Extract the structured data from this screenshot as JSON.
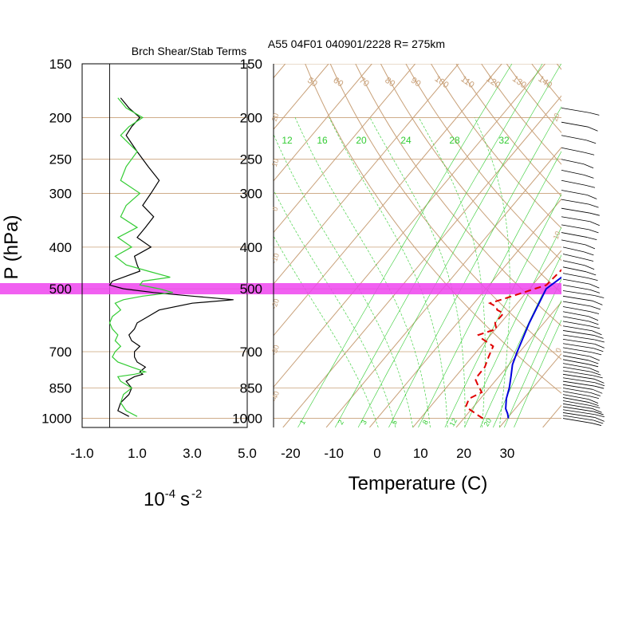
{
  "titles": {
    "left": "Brch Shear/Stab Terms",
    "right": "A55 04F01 040901/2228 R= 275km"
  },
  "axes": {
    "p_label": "P (hPa)",
    "left_xlabel_base": "10",
    "left_xlabel_exp": "-4",
    "left_xlabel_unit": "s",
    "left_xlabel_unit_exp": "-2",
    "right_xlabel": "Temperature (C)"
  },
  "colors": {
    "grid": "#c8a078",
    "temperature": "#0000dd",
    "dewpoint": "#e00000",
    "mixing_ratio": "#33cc33",
    "highlight": "#ee44ee",
    "shear_term": "#000000",
    "stability_term": "#33cc33"
  },
  "chart_data": [
    {
      "type": "line",
      "title": "Brch Shear/Stab Terms",
      "xlabel": "10-4 s -2",
      "ylabel": "P (hPa)",
      "xlim": [
        -1.0,
        5.0
      ],
      "ylim": [
        1050,
        150
      ],
      "y_scale": "log",
      "x_ticks": [
        "-1.0",
        "1.0",
        "3.0",
        "5.0"
      ],
      "y_ticks": [
        "150",
        "200",
        "250",
        "300",
        "400",
        "500",
        "700",
        "850",
        "1000"
      ],
      "highlight_band_hPa": [
        485,
        515
      ],
      "series": [
        {
          "color": "black",
          "x": [
            0.7,
            0.3,
            0.4,
            0.7,
            0.8,
            0.6,
            0.9,
            1.2,
            1.1,
            1.3,
            1.0,
            0.9,
            0.9,
            1.1,
            0.8,
            0.7,
            0.9,
            1.0,
            1.4,
            1.8,
            3.0,
            4.5,
            3.0,
            1.6,
            0.5,
            0.0,
            0.1,
            0.5,
            1.1,
            1.0,
            0.9,
            1.5,
            1.0,
            1.3,
            1.6,
            1.2,
            1.5,
            1.8,
            1.4,
            1.0,
            0.6,
            0.8,
            1.1,
            0.7,
            0.4
          ],
          "y": [
            990,
            960,
            920,
            880,
            850,
            820,
            800,
            790,
            780,
            760,
            740,
            720,
            700,
            680,
            660,
            640,
            620,
            600,
            580,
            560,
            540,
            530,
            520,
            510,
            500,
            490,
            480,
            470,
            455,
            440,
            420,
            400,
            380,
            360,
            340,
            320,
            300,
            280,
            260,
            240,
            220,
            210,
            200,
            190,
            180
          ]
        },
        {
          "color": "green",
          "x": [
            1.0,
            0.6,
            0.4,
            0.5,
            0.8,
            0.4,
            0.3,
            0.9,
            1.3,
            0.8,
            0.3,
            0.1,
            0.2,
            0.4,
            0.2,
            0.3,
            0.1,
            0.0,
            0.1,
            0.4,
            0.2,
            0.5,
            1.2,
            2.3,
            1.8,
            1.1,
            1.2,
            2.2,
            1.4,
            0.6,
            0.2,
            0.8,
            0.3,
            1.0,
            0.4,
            0.6,
            1.1,
            0.4,
            0.6,
            1.0,
            0.4,
            0.7,
            1.2,
            0.6,
            0.3
          ],
          "y": [
            990,
            960,
            920,
            880,
            850,
            820,
            800,
            790,
            780,
            760,
            740,
            720,
            700,
            680,
            660,
            640,
            620,
            600,
            580,
            560,
            540,
            530,
            520,
            510,
            500,
            490,
            480,
            470,
            455,
            440,
            420,
            400,
            380,
            360,
            340,
            320,
            300,
            280,
            260,
            240,
            220,
            210,
            200,
            190,
            180
          ]
        }
      ]
    },
    {
      "type": "line",
      "title": "A55 04F01 040901/2228 R= 275km",
      "xlabel": "Temperature (C)",
      "ylabel": "P (hPa)",
      "xlim": [
        -22.5,
        41.5
      ],
      "ylim": [
        1050,
        150
      ],
      "y_scale": "log",
      "x_ticks": [
        "-20",
        "-10",
        "0",
        "10",
        "20",
        "30"
      ],
      "y_ticks": [
        "150",
        "200",
        "250",
        "300",
        "400",
        "500",
        "700",
        "850",
        "1000"
      ],
      "skew": "skew-T",
      "series": [
        {
          "color": "blue",
          "style": "solid",
          "x": [
            30.3,
            29.2,
            27.8,
            26.0,
            24.6,
            22.8,
            20.8,
            19.4,
            16.6,
            13.9,
            16.2,
            16.1,
            14.8,
            12.9,
            10.9,
            8.1,
            5.6,
            3.0,
            0.5,
            -0.4
          ],
          "y": [
            1000,
            975,
            950,
            900,
            850,
            800,
            750,
            700,
            600,
            500,
            450,
            420,
            380,
            320,
            290,
            250,
            220,
            200,
            185,
            180
          ]
        },
        {
          "color": "red",
          "style": "dashed",
          "x": [
            24.4,
            22.8,
            20.8,
            18.2,
            17.4,
            19.1,
            17.0,
            15.0,
            14.9,
            13.8,
            12.8,
            8.3,
            7.2,
            10.2,
            8.7,
            8.8,
            6.7,
            5.8,
            3.7,
            7.5,
            13.2,
            13.8,
            13.2,
            12.6,
            10.5,
            9.1,
            6.9,
            5.1,
            3.0,
            1.5,
            -4.8,
            -5.5
          ],
          "y": [
            1000,
            985,
            965,
            940,
            900,
            870,
            840,
            810,
            760,
            720,
            680,
            650,
            640,
            620,
            600,
            570,
            560,
            550,
            540,
            520,
            490,
            450,
            420,
            400,
            360,
            330,
            310,
            280,
            250,
            240,
            210,
            200
          ]
        }
      ]
    }
  ],
  "skewt": {
    "isotherms_C": [
      -100,
      -90,
      -80,
      -70,
      -60,
      -50,
      -40,
      -30,
      -20,
      -10,
      0,
      10,
      20,
      30,
      40
    ],
    "dry_adiabat_labels": [
      "50",
      "60",
      "70",
      "80",
      "90",
      "100",
      "110",
      "120",
      "130",
      "140",
      "150"
    ],
    "dry_adiabat_K": [
      323,
      333,
      343,
      353,
      363,
      373,
      383,
      393,
      403,
      413,
      423
    ],
    "mixing_ratio_top_labels": [
      "12",
      "16",
      "20",
      "24",
      "28",
      "32"
    ],
    "mixing_ratio_bottom_labels": [
      "1",
      "2",
      "3",
      "5",
      "8",
      "12",
      "20"
    ],
    "moist_adiabat_labels": [
      "20",
      "10",
      "0",
      "-10",
      "-20",
      "-30",
      "-40"
    ]
  },
  "wind_profile_hPa": [
    1000,
    985,
    970,
    955,
    940,
    925,
    910,
    895,
    880,
    865,
    850,
    835,
    820,
    805,
    790,
    775,
    760,
    745,
    730,
    715,
    700,
    685,
    670,
    655,
    640,
    625,
    610,
    595,
    580,
    565,
    550,
    535,
    520,
    505,
    490,
    475,
    460,
    445,
    430,
    415,
    400,
    385,
    370,
    355,
    340,
    325,
    310,
    295,
    280,
    265,
    250,
    235,
    220,
    205,
    190
  ]
}
